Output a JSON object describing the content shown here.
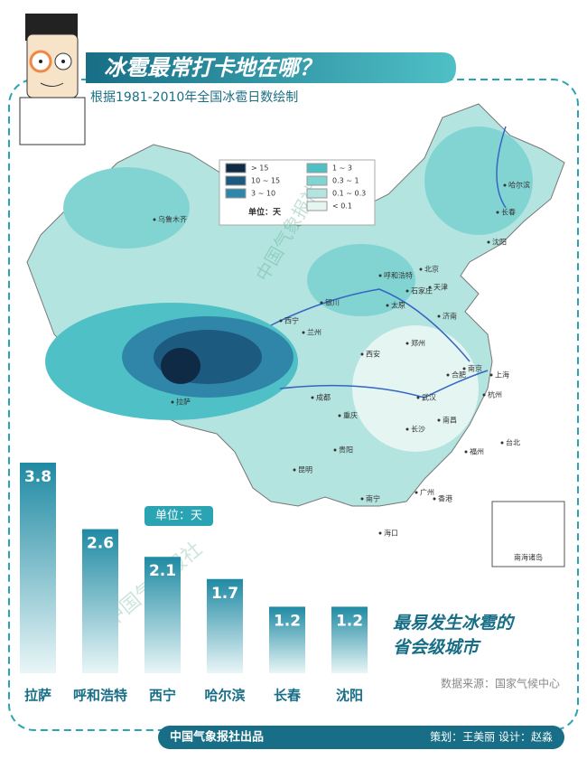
{
  "header": {
    "title": "冰雹最常打卡地在哪？",
    "subtitle": "根据1981-2010年全国冰雹日数绘制"
  },
  "map": {
    "legend": [
      {
        "label": "> 15",
        "color": "#0e2a45"
      },
      {
        "label": "10 ~ 15",
        "color": "#1c5a80"
      },
      {
        "label": "3 ~ 10",
        "color": "#2f86a8"
      },
      {
        "label": "1 ~ 3",
        "color": "#4fc0c6"
      },
      {
        "label": "0.3 ~ 1",
        "color": "#82d4d3"
      },
      {
        "label": "0.1 ~ 0.3",
        "color": "#b3e4e0"
      },
      {
        "label": "< 0.1",
        "color": "#e4f5f2"
      }
    ],
    "legend_unit": "单位：天",
    "cities": [
      "乌鲁木齐",
      "哈尔滨",
      "长春",
      "沈阳",
      "呼和浩特",
      "北京",
      "天津",
      "石家庄",
      "太原",
      "银川",
      "兰州",
      "西宁",
      "济南",
      "郑州",
      "西安",
      "南京",
      "上海",
      "合肥",
      "杭州",
      "武汉",
      "成都",
      "重庆",
      "长沙",
      "南昌",
      "福州",
      "贵阳",
      "昆明",
      "南宁",
      "广州",
      "香港",
      "台北",
      "海口",
      "拉萨"
    ],
    "inset_label": "南海诸岛",
    "watermark": "中国气象报社"
  },
  "chart_data": {
    "type": "bar",
    "title_lines": [
      "最易发生冰雹的",
      "省会级城市"
    ],
    "unit_label": "单位：天",
    "categories": [
      "拉萨",
      "呼和浩特",
      "西宁",
      "哈尔滨",
      "长春",
      "沈阳"
    ],
    "values": [
      3.8,
      2.6,
      2.1,
      1.7,
      1.2,
      1.2
    ],
    "color": "#1f8aa3",
    "source": "数据来源：国家气候中心"
  },
  "footer": {
    "publisher": "中国气象报社出品",
    "credits": "策划：王美丽    设计：赵淼"
  }
}
